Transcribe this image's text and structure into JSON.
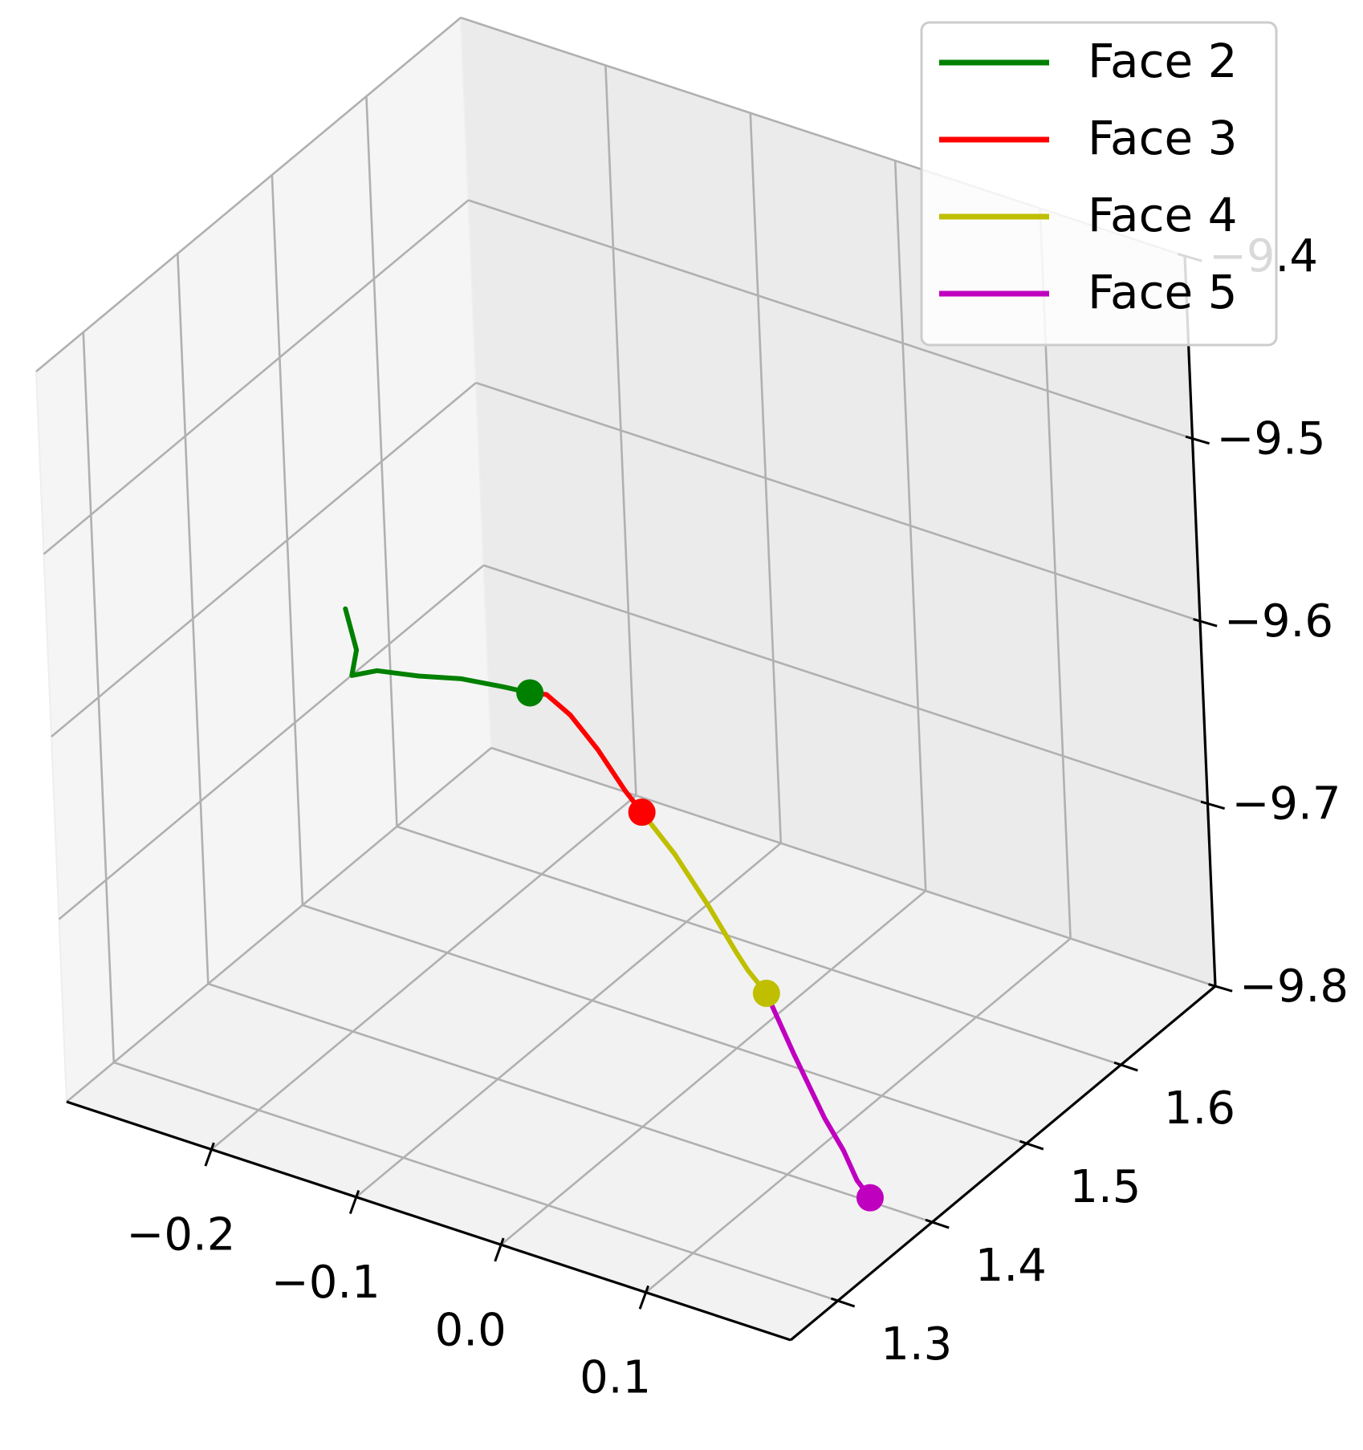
{
  "chart_data": {
    "type": "line",
    "projection": "3d",
    "title": "",
    "xlabel": "",
    "ylabel": "",
    "zlabel": "",
    "xlim": [
      -0.3,
      0.2
    ],
    "ylim": [
      1.25,
      1.7
    ],
    "zlim": [
      -9.8,
      -9.4
    ],
    "grid": true,
    "legend_placement": "top-right",
    "ticks": {
      "x": [
        {
          "value": -0.2,
          "label": "−0.2"
        },
        {
          "value": -0.1,
          "label": "−0.1"
        },
        {
          "value": 0.0,
          "label": "0.0"
        },
        {
          "value": 0.1,
          "label": "0.1"
        }
      ],
      "y": [
        {
          "value": 1.3,
          "label": "1.3"
        },
        {
          "value": 1.4,
          "label": "1.4"
        },
        {
          "value": 1.5,
          "label": "1.5"
        },
        {
          "value": 1.6,
          "label": "1.6"
        }
      ],
      "z": [
        {
          "value": -9.8,
          "label": "−9.8"
        },
        {
          "value": -9.7,
          "label": "−9.7"
        },
        {
          "value": -9.6,
          "label": "−9.6"
        },
        {
          "value": -9.5,
          "label": "−9.5"
        },
        {
          "value": -9.4,
          "label": "−9.4"
        }
      ]
    },
    "series": [
      {
        "name": "Face 2",
        "color": "#008000",
        "points": [
          [
            -0.236,
            1.463,
            -9.605
          ],
          [
            -0.224,
            1.455,
            -9.621
          ],
          [
            -0.228,
            1.455,
            -9.636
          ],
          [
            -0.215,
            1.462,
            -9.633
          ],
          [
            -0.19,
            1.468,
            -9.632
          ],
          [
            -0.165,
            1.475,
            -9.63
          ],
          [
            -0.14,
            1.482,
            -9.631
          ],
          [
            -0.125,
            1.486,
            -9.632
          ]
        ],
        "end_marker": [
          -0.125,
          1.486,
          -9.632
        ]
      },
      {
        "name": "Face 3",
        "color": "#ff0000",
        "points": [
          [
            -0.125,
            1.486,
            -9.632
          ],
          [
            -0.108,
            1.478,
            -9.625
          ],
          [
            -0.085,
            1.468,
            -9.626
          ],
          [
            -0.06,
            1.458,
            -9.634
          ],
          [
            -0.035,
            1.448,
            -9.646
          ],
          [
            -0.02,
            1.442,
            -9.651
          ]
        ],
        "end_marker": [
          -0.02,
          1.442,
          -9.651
        ]
      },
      {
        "name": "Face 4",
        "color": "#bfbf00",
        "points": [
          [
            -0.02,
            1.442,
            -9.651
          ],
          [
            0.01,
            1.43,
            -9.661
          ],
          [
            0.04,
            1.418,
            -9.676
          ],
          [
            0.065,
            1.409,
            -9.692
          ],
          [
            0.075,
            1.405,
            -9.697
          ],
          [
            0.092,
            1.398,
            -9.702
          ]
        ],
        "end_marker": [
          0.092,
          1.398,
          -9.702
        ]
      },
      {
        "name": "Face 5",
        "color": "#bf00bf",
        "points": [
          [
            0.092,
            1.398,
            -9.702
          ],
          [
            0.115,
            1.39,
            -9.726
          ],
          [
            0.14,
            1.382,
            -9.751
          ],
          [
            0.155,
            1.378,
            -9.763
          ],
          [
            0.165,
            1.376,
            -9.776
          ],
          [
            0.175,
            1.374,
            -9.782
          ]
        ],
        "end_marker": [
          0.175,
          1.374,
          -9.782
        ]
      }
    ]
  }
}
